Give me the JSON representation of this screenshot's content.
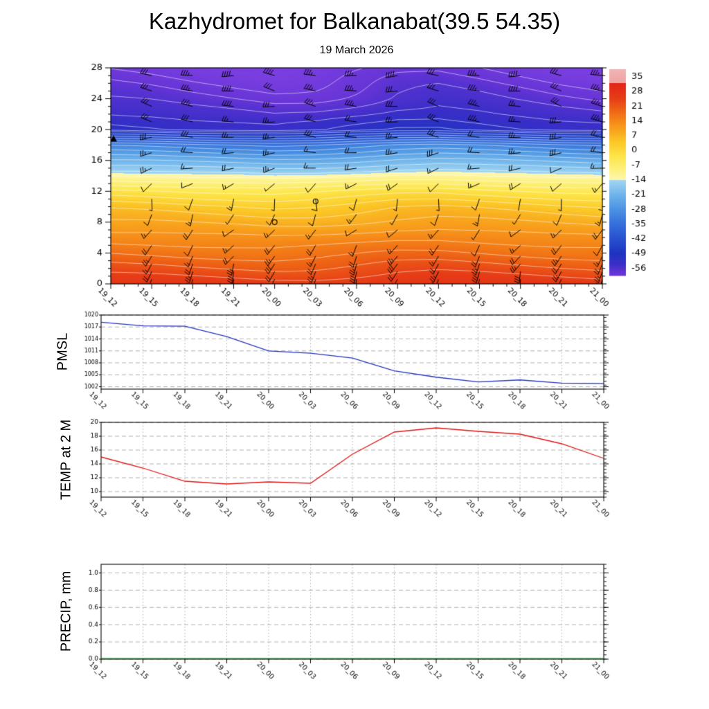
{
  "title": "Kazhydromet for Balkanabat(39.5 54.35)",
  "subtitle": "19 March 2026",
  "time_labels": [
    "19_12",
    "19_15",
    "19_18",
    "19_21",
    "20_00",
    "20_03",
    "20_06",
    "20_09",
    "20_12",
    "20_15",
    "20_18",
    "20_21",
    "21_00"
  ],
  "chart_data": [
    {
      "id": "temperature_height_cross_section",
      "type": "heatmap",
      "categories": [
        "19_12",
        "19_15",
        "19_18",
        "19_21",
        "20_00",
        "20_03",
        "20_06",
        "20_09",
        "20_12",
        "20_15",
        "20_18",
        "20_21",
        "21_00"
      ],
      "ylim": [
        0,
        28
      ],
      "y_ticks": [
        0,
        4,
        8,
        12,
        16,
        20,
        24,
        28
      ],
      "colorbar_ticks": [
        35,
        28,
        21,
        14,
        7,
        0,
        -7,
        -14,
        -21,
        -28,
        -35,
        -42,
        -49,
        -56
      ],
      "colorbar_range": {
        "top": 38.5,
        "bottom": -59.5
      },
      "color_stops": [
        [
          38,
          "#f2b2b2"
        ],
        [
          32.01,
          "#eea4a4"
        ],
        [
          32,
          "#e32517"
        ],
        [
          25,
          "#e63c16"
        ],
        [
          18,
          "#f06c15"
        ],
        [
          11,
          "#f89c1b"
        ],
        [
          4,
          "#fbc827"
        ],
        [
          -3,
          "#fde64a"
        ],
        [
          -10,
          "#fdf286"
        ],
        [
          -13.99,
          "#fef7b0"
        ],
        [
          -14,
          "#a2d6f2"
        ],
        [
          -21,
          "#6fb4ea"
        ],
        [
          -28,
          "#4b92e2"
        ],
        [
          -35,
          "#366fdb"
        ],
        [
          -42,
          "#2750d0"
        ],
        [
          -49,
          "#1e33c2"
        ],
        [
          -54,
          "#3c2ec8"
        ],
        [
          -58,
          "#6634d6"
        ],
        [
          -64,
          "#8142e4"
        ]
      ],
      "profile_heights": [
        0,
        2,
        4,
        6,
        8,
        10,
        12,
        14,
        16,
        18,
        20,
        22,
        24,
        26,
        28
      ],
      "profile_temps": [
        26,
        21.5,
        17,
        13,
        8.5,
        4,
        -3,
        -13,
        -22,
        -32,
        -52,
        -55,
        -57.5,
        -59.5,
        -61.5
      ],
      "column_offsets": [
        0.8,
        0.5,
        0,
        -0.4,
        -0.8,
        -0.5,
        0.3,
        1.2,
        1.5,
        1.0,
        0.4,
        -0.2,
        -0.6
      ],
      "contour_levels": [
        24,
        21,
        18,
        15,
        12,
        9,
        6,
        3,
        0,
        -3,
        -6,
        -9,
        -12,
        -15,
        -18,
        -21,
        -24,
        -27,
        -30,
        -33,
        -36,
        -39,
        -42,
        -45,
        -48,
        -50,
        -52,
        -54,
        -56,
        -58,
        -60
      ],
      "wind_rows": [
        [
          0.6,
          195,
          30
        ],
        [
          1.6,
          200,
          28
        ],
        [
          2.6,
          205,
          25
        ],
        [
          3.6,
          210,
          22
        ],
        [
          5,
          215,
          18
        ],
        [
          7,
          225,
          15
        ],
        [
          9,
          205,
          12
        ],
        [
          11,
          185,
          10
        ],
        [
          13,
          235,
          15
        ],
        [
          15,
          255,
          20
        ],
        [
          17,
          265,
          25
        ],
        [
          19,
          272,
          28
        ],
        [
          21,
          278,
          30
        ],
        [
          23,
          282,
          34
        ],
        [
          25,
          278,
          36
        ],
        [
          27,
          274,
          38
        ]
      ],
      "calm_markers": [
        [
          4,
          8
        ],
        [
          5,
          10.7
        ]
      ],
      "triangle_marker": [
        0,
        18.8
      ]
    },
    {
      "id": "pmsl",
      "type": "line",
      "ylabel": "PMSL",
      "color": "#2233bb",
      "categories": [
        "19_12",
        "19_15",
        "19_18",
        "19_21",
        "20_00",
        "20_03",
        "20_06",
        "20_09",
        "20_12",
        "20_15",
        "20_18",
        "20_21",
        "21_00"
      ],
      "y_ticks": [
        1002,
        1005,
        1008,
        1011,
        1014,
        1017,
        1020
      ],
      "ylim": [
        1001.4,
        1020
      ],
      "minor_step": 1,
      "values": [
        1018.2,
        1017.3,
        1017.2,
        1014.6,
        1011.0,
        1010.4,
        1009.2,
        1006.0,
        1004.4,
        1003.2,
        1003.7,
        1002.9,
        1002.8
      ]
    },
    {
      "id": "temp_2m",
      "type": "line",
      "ylabel": "TEMP at 2 M",
      "color": "#dd1515",
      "categories": [
        "19_12",
        "19_15",
        "19_18",
        "19_21",
        "20_00",
        "20_03",
        "20_06",
        "20_09",
        "20_12",
        "20_15",
        "20_18",
        "20_21",
        "21_00"
      ],
      "y_ticks": [
        10,
        12,
        14,
        16,
        18,
        20
      ],
      "ylim": [
        9.2,
        20
      ],
      "minor_step": 0.5,
      "values": [
        15.0,
        13.4,
        11.5,
        11.1,
        11.4,
        11.2,
        15.4,
        18.6,
        19.2,
        18.7,
        18.3,
        16.9,
        14.8
      ]
    },
    {
      "id": "precip",
      "type": "line",
      "ylabel": "PRECIP, mm",
      "color": "#067806",
      "categories": [
        "19_12",
        "19_15",
        "19_18",
        "19_21",
        "20_00",
        "20_03",
        "20_06",
        "20_09",
        "20_12",
        "20_15",
        "20_18",
        "20_21",
        "21_00"
      ],
      "y_ticks": [
        0,
        0.2,
        0.4,
        0.6,
        0.8,
        1.0
      ],
      "y_tick_labels": [
        "0.0",
        "0.2",
        "0.4",
        "0.6",
        "0.8",
        "1.0"
      ],
      "ylim": [
        0,
        1.1
      ],
      "minor_step": 0.05,
      "values": [
        0,
        0,
        0,
        0,
        0,
        0,
        0,
        0,
        0,
        0,
        0,
        0,
        0
      ]
    }
  ]
}
